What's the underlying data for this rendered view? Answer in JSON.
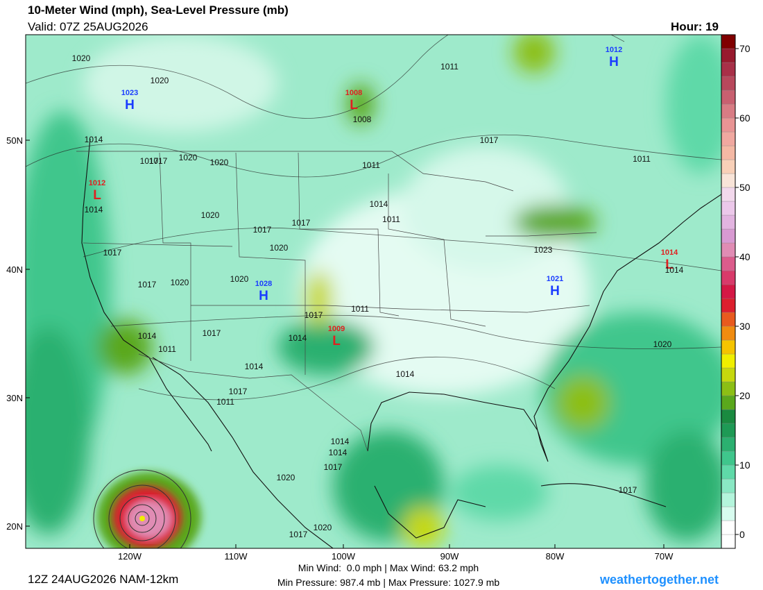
{
  "header": {
    "title": "10-Meter Wind (mph), Sea-Level Pressure (mb)",
    "valid": "Valid: 07Z 25AUG2026",
    "hour": "Hour: 19"
  },
  "map": {
    "lat_labels": [
      "50N",
      "40N",
      "30N",
      "20N"
    ],
    "lon_labels": [
      "120W",
      "110W",
      "100W",
      "90W",
      "80W",
      "70W"
    ],
    "centers": [
      {
        "type": "H",
        "value": "1023"
      },
      {
        "type": "L",
        "value": "1008"
      },
      {
        "type": "H",
        "value": "1012"
      },
      {
        "type": "L",
        "value": "1012"
      },
      {
        "type": "H",
        "value": "1028"
      },
      {
        "type": "L",
        "value": "1009"
      },
      {
        "type": "H",
        "value": "1021"
      },
      {
        "type": "L",
        "value": "1014"
      }
    ],
    "isobar_labels": [
      "1020",
      "1020",
      "1011",
      "1008",
      "1017",
      "1011",
      "1011",
      "1017",
      "1020",
      "1020",
      "1014",
      "1014",
      "1017",
      "1011",
      "1020",
      "1017",
      "1020",
      "1023",
      "1017",
      "1017",
      "1020",
      "1020",
      "1011",
      "1017",
      "1014",
      "1014",
      "1011",
      "1017",
      "1014",
      "1014",
      "1017",
      "1014",
      "1011",
      "1014",
      "1014",
      "1017",
      "1020",
      "1020",
      "1017",
      "1020",
      "1017",
      "1014",
      "1017"
    ]
  },
  "colorbar": {
    "lim": [
      -2,
      72
    ],
    "ticks": [
      0,
      10,
      20,
      30,
      40,
      50,
      60,
      70
    ],
    "colors": [
      "#ffffff",
      "#ffffff",
      "#d8fcef",
      "#b4f5dc",
      "#8ae8c4",
      "#5fd9a8",
      "#3fc68c",
      "#2bb070",
      "#1e9a55",
      "#1a8a40",
      "#5aa81c",
      "#8cbf15",
      "#c6d80e",
      "#f0ef00",
      "#f5c400",
      "#f08c10",
      "#e85a1e",
      "#dc1f2e",
      "#d41845",
      "#d83a6a",
      "#dc5c8c",
      "#e08cb4",
      "#d89ad2",
      "#e2b4e0",
      "#ecc8ea",
      "#f2d8ec",
      "#f8e4d8",
      "#f8d0b8",
      "#f4b8a4",
      "#f0a8a0",
      "#e89494",
      "#d87c84",
      "#c86070",
      "#b8485c",
      "#a83048",
      "#981a2e",
      "#800000"
    ]
  },
  "footer": {
    "run": "12Z 24AUG2026 NAM-12km",
    "stats": [
      "Min Wind:  0.0 mph | Max Wind: 63.2 mph",
      "Min Pressure: 987.4 mb | Max Pressure: 1027.9 mb"
    ],
    "site": "weathertogether.net"
  }
}
